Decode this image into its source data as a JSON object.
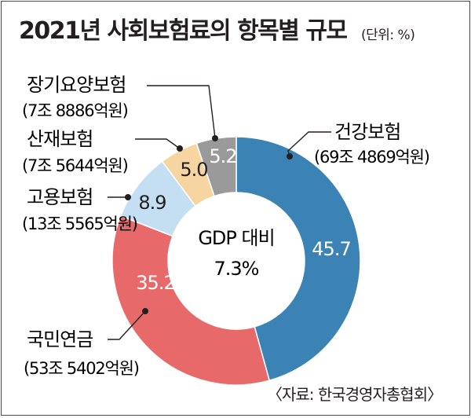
{
  "title": "2021년 사회보험료의 항목별 규모",
  "unit": "(단위: %)",
  "center": {
    "line1": "GDP 대비",
    "line2": "7.3%"
  },
  "source": "〈자료: 한국경영자총협회〉",
  "chart_data": {
    "type": "pie",
    "variant": "donut",
    "title": "2021년 사회보험료의 항목별 규모",
    "unit": "%",
    "categories": [
      "건강보험",
      "국민연금",
      "고용보험",
      "산재보험",
      "장기요양보험"
    ],
    "values": [
      45.7,
      35.2,
      8.9,
      5.0,
      5.2
    ],
    "value_labels": [
      "45.7",
      "35.2",
      "8.9",
      "5.0",
      "5.2"
    ],
    "amounts": [
      "(69조 4869억원)",
      "(53조 5402억원)",
      "(13조 5565억원)",
      "(7조 5644억원)",
      "(7조 8886억원)"
    ],
    "colors": [
      "#3a83b4",
      "#e8696a",
      "#c4dff2",
      "#f6d5a1",
      "#9a9a9a"
    ],
    "label_colors": [
      "#ffffff",
      "#ffffff",
      "#231f20",
      "#231f20",
      "#ffffff"
    ]
  }
}
